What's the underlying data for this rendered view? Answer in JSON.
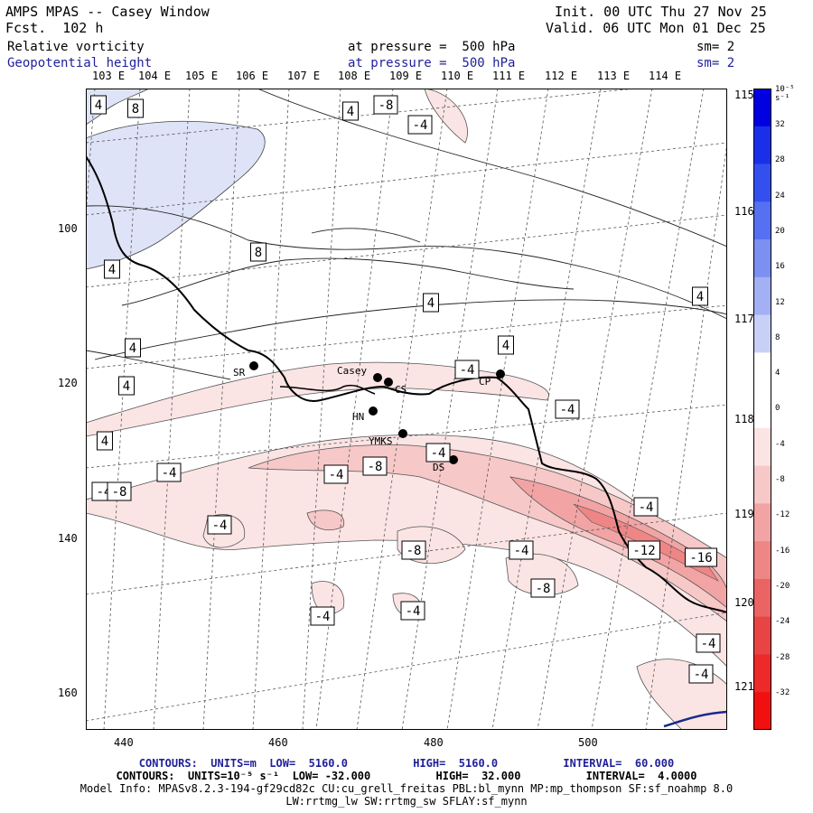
{
  "header": {
    "title": "AMPS MPAS -- Casey Window",
    "forecast": "Fcst.  102 h",
    "init": "Init. 00 UTC Thu 27 Nov 25",
    "valid": "Valid. 06 UTC Mon 01 Dec 25",
    "field1_name": "Relative vorticity",
    "field1_level": "at pressure =  500 hPa",
    "field1_sm": "sm= 2",
    "field2_name": "Geopotential height",
    "field2_level": "at pressure =  500 hPa",
    "field2_sm": "sm= 2"
  },
  "top_lon_labels": [
    "103 E",
    "104 E",
    "105 E",
    "106 E",
    "107 E",
    "108 E",
    "109 E",
    "110 E",
    "111 E",
    "112 E",
    "113 E",
    "114 E"
  ],
  "right_lon_labels": [
    "115 E",
    "116 E",
    "117 E",
    "118 E",
    "119 E",
    "120 E",
    "121 E"
  ],
  "y_axis_labels": [
    "100",
    "120",
    "140",
    "160"
  ],
  "x_axis_labels": [
    "440",
    "460",
    "480",
    "500"
  ],
  "stations": [
    {
      "name": "SR"
    },
    {
      "name": "Casey"
    },
    {
      "name": "CS"
    },
    {
      "name": "CP"
    },
    {
      "name": "HN"
    },
    {
      "name": "YMKS"
    },
    {
      "name": "DS"
    }
  ],
  "contour_labels": [
    "4",
    "8",
    "-8",
    "-4",
    "4",
    "4",
    "8",
    "4",
    "4",
    "4",
    "4",
    "4",
    "4",
    "-4",
    "-4",
    "-4",
    "-4",
    "-8",
    "-4",
    "-8",
    "-4",
    "-4",
    "-8",
    "-4",
    "-4",
    "-12",
    "-16",
    "-8",
    "-4",
    "-4",
    "-4",
    "-4"
  ],
  "colorbar": {
    "units": "10⁻⁵ s⁻¹",
    "labels": [
      "32",
      "28",
      "24",
      "20",
      "16",
      "12",
      "8",
      "4",
      "0",
      "-4",
      "-8",
      "-12",
      "-16",
      "-20",
      "-24",
      "-28",
      "-32"
    ],
    "colors": [
      "#0000e0",
      "#1a30e8",
      "#3350ee",
      "#5570f0",
      "#7c90f2",
      "#a4b0f4",
      "#c8d0f8",
      "#ffffff",
      "#ffffff",
      "#fbe4e4",
      "#f7c8c8",
      "#f2a4a4",
      "#ee8686",
      "#ea6464",
      "#e84444",
      "#ec2a2a",
      "#f01010"
    ]
  },
  "footer": {
    "line1": "CONTOURS:  UNITS=m  LOW=  5160.0          HIGH=  5160.0          INTERVAL=  60.000",
    "line2": "CONTOURS:  UNITS=10⁻⁵ s⁻¹  LOW= -32.000          HIGH=  32.000          INTERVAL=  4.0000",
    "line3": "Model Info: MPASv8.2.3-194-gf29cd82c CU:cu_grell_freitas PBL:bl_mynn MP:mp_thompson SF:sf_noahmp 8.0",
    "line4": "LW:rrtmg_lw SW:rrtmg_sw SFLAY:sf_mynn"
  }
}
